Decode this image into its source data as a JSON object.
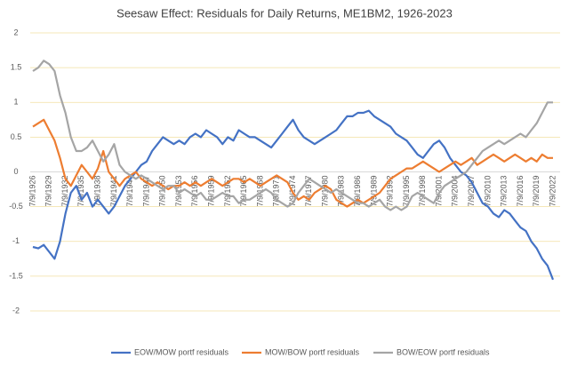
{
  "chart_data": {
    "type": "line",
    "title": "Seesaw Effect: Residuals for Daily Returns, ME1BM2, 1926-2023",
    "categories": [
      "7/9/1926",
      null,
      null,
      "7/9/1929",
      null,
      null,
      "7/9/1932",
      null,
      null,
      "7/9/1935",
      null,
      null,
      "7/9/1938",
      null,
      null,
      "7/9/1941",
      null,
      null,
      "7/9/1944",
      null,
      null,
      "7/9/1947",
      null,
      null,
      "7/9/1950",
      null,
      null,
      "7/9/1953",
      null,
      null,
      "7/9/1956",
      null,
      null,
      "7/9/1959",
      null,
      null,
      "7/9/1962",
      null,
      null,
      "7/9/1965",
      null,
      null,
      "7/9/1968",
      null,
      null,
      "7/9/1971",
      null,
      null,
      "7/9/1974",
      null,
      null,
      "7/9/1977",
      null,
      null,
      "7/9/1980",
      null,
      null,
      "7/9/1983",
      null,
      null,
      "7/9/1986",
      null,
      null,
      "7/9/1989",
      null,
      null,
      "7/9/1992",
      null,
      null,
      "7/9/1995",
      null,
      null,
      "7/9/1998",
      null,
      null,
      "7/9/2001",
      null,
      null,
      "7/9/2004",
      null,
      null,
      "7/9/2007",
      null,
      null,
      "7/9/2010",
      null,
      null,
      "7/9/2013",
      null,
      null,
      "7/9/2016",
      null,
      null,
      "7/9/2019",
      null,
      null,
      "7/9/2022"
    ],
    "series": [
      {
        "name": "EOW/MOW portf residuals",
        "color": "#4472c4",
        "values": [
          -1.08,
          -1.1,
          -1.05,
          -1.15,
          -1.25,
          -1.0,
          -0.6,
          -0.3,
          -0.2,
          -0.4,
          -0.3,
          -0.5,
          -0.4,
          -0.5,
          -0.6,
          -0.5,
          -0.35,
          -0.2,
          -0.1,
          0.0,
          0.1,
          0.15,
          0.3,
          0.4,
          0.5,
          0.45,
          0.4,
          0.45,
          0.4,
          0.5,
          0.55,
          0.5,
          0.6,
          0.55,
          0.5,
          0.4,
          0.5,
          0.45,
          0.6,
          0.55,
          0.5,
          0.5,
          0.45,
          0.4,
          0.35,
          0.45,
          0.55,
          0.65,
          0.75,
          0.6,
          0.5,
          0.45,
          0.4,
          0.45,
          0.5,
          0.55,
          0.6,
          0.7,
          0.8,
          0.8,
          0.85,
          0.85,
          0.88,
          0.8,
          0.75,
          0.7,
          0.65,
          0.55,
          0.5,
          0.45,
          0.35,
          0.25,
          0.2,
          0.3,
          0.4,
          0.45,
          0.35,
          0.2,
          0.1,
          0.0,
          -0.05,
          -0.15,
          -0.3,
          -0.45,
          -0.5,
          -0.6,
          -0.65,
          -0.55,
          -0.6,
          -0.7,
          -0.8,
          -0.85,
          -1.0,
          -1.1,
          -1.25,
          -1.35,
          -1.55
        ]
      },
      {
        "name": "MOW/BOW portf residuals",
        "color": "#ed7d31",
        "values": [
          0.65,
          0.7,
          0.75,
          0.6,
          0.45,
          0.2,
          -0.1,
          -0.2,
          -0.05,
          0.1,
          0.0,
          -0.1,
          0.05,
          0.3,
          0.0,
          -0.1,
          -0.2,
          -0.1,
          -0.05,
          0.0,
          -0.1,
          -0.15,
          -0.2,
          -0.15,
          -0.2,
          -0.25,
          -0.2,
          -0.2,
          -0.15,
          -0.2,
          -0.15,
          -0.2,
          -0.15,
          -0.1,
          -0.15,
          -0.2,
          -0.15,
          -0.1,
          -0.1,
          -0.15,
          -0.1,
          -0.15,
          -0.2,
          -0.15,
          -0.1,
          -0.05,
          -0.1,
          -0.15,
          -0.3,
          -0.4,
          -0.35,
          -0.4,
          -0.3,
          -0.25,
          -0.2,
          -0.25,
          -0.4,
          -0.45,
          -0.5,
          -0.45,
          -0.4,
          -0.45,
          -0.4,
          -0.35,
          -0.3,
          -0.2,
          -0.1,
          -0.05,
          0.0,
          0.05,
          0.05,
          0.1,
          0.15,
          0.1,
          0.05,
          0.0,
          0.05,
          0.1,
          0.15,
          0.1,
          0.15,
          0.2,
          0.1,
          0.15,
          0.2,
          0.25,
          0.2,
          0.15,
          0.2,
          0.25,
          0.2,
          0.15,
          0.2,
          0.15,
          0.25,
          0.2,
          0.2
        ]
      },
      {
        "name": "BOW/EOW portf residuals",
        "color": "#a5a5a5",
        "values": [
          1.45,
          1.5,
          1.6,
          1.55,
          1.45,
          1.1,
          0.85,
          0.5,
          0.3,
          0.3,
          0.35,
          0.45,
          0.3,
          0.15,
          0.25,
          0.4,
          0.1,
          0.0,
          -0.05,
          -0.1,
          -0.05,
          -0.1,
          -0.15,
          -0.2,
          -0.25,
          -0.2,
          -0.2,
          -0.3,
          -0.25,
          -0.3,
          -0.35,
          -0.3,
          -0.4,
          -0.4,
          -0.35,
          -0.3,
          -0.35,
          -0.35,
          -0.45,
          -0.4,
          -0.4,
          -0.35,
          -0.3,
          -0.25,
          -0.3,
          -0.4,
          -0.45,
          -0.5,
          -0.45,
          -0.3,
          -0.2,
          -0.1,
          -0.15,
          -0.2,
          -0.25,
          -0.3,
          -0.25,
          -0.3,
          -0.35,
          -0.4,
          -0.45,
          -0.45,
          -0.5,
          -0.45,
          -0.4,
          -0.5,
          -0.55,
          -0.5,
          -0.55,
          -0.5,
          -0.35,
          -0.3,
          -0.35,
          -0.4,
          -0.45,
          -0.3,
          -0.2,
          -0.15,
          -0.1,
          -0.05,
          0.0,
          0.1,
          0.2,
          0.3,
          0.35,
          0.4,
          0.45,
          0.4,
          0.45,
          0.5,
          0.55,
          0.5,
          0.6,
          0.7,
          0.85,
          1.0,
          1.0
        ]
      }
    ],
    "ylim": [
      -2,
      2
    ],
    "yticks": [
      2,
      1.5,
      1,
      0.5,
      0,
      -0.5,
      -1,
      -1.5,
      -2
    ],
    "grid": true,
    "legend": "bottom"
  }
}
